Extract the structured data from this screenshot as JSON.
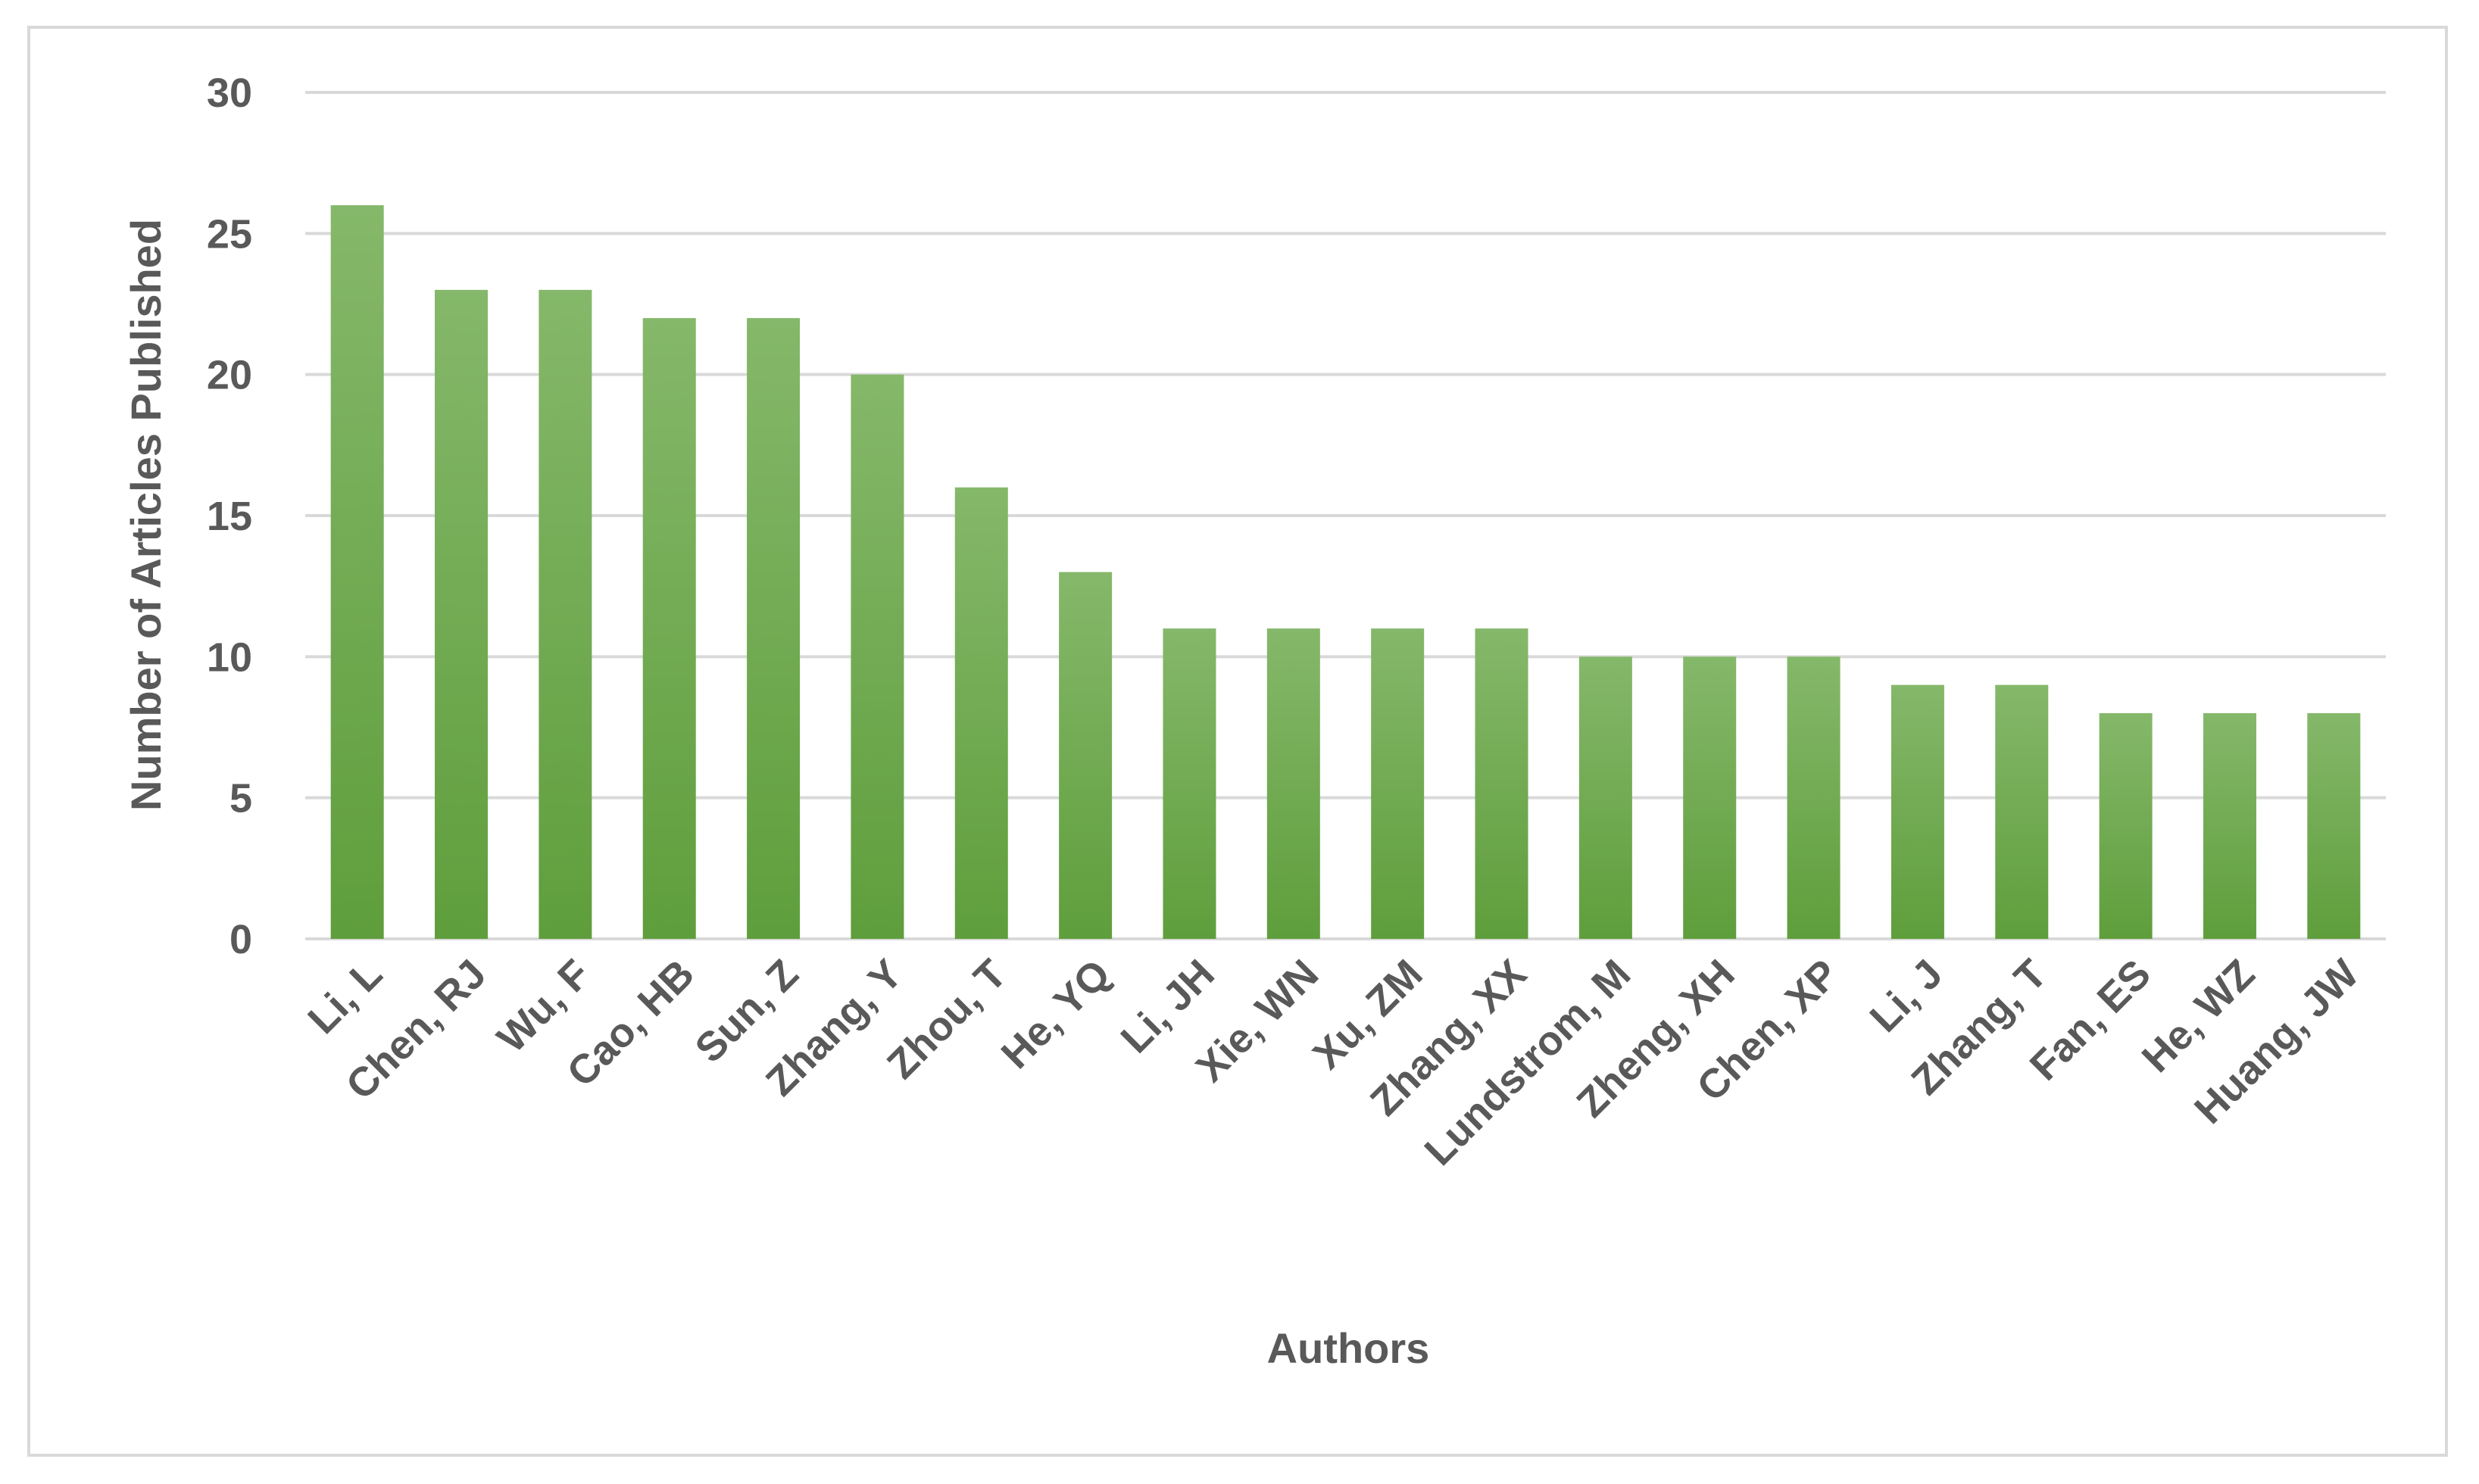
{
  "chart_data": {
    "type": "bar",
    "categories": [
      "Li, L",
      "Chen, RJ",
      "Wu, F",
      "Cao, HB",
      "Sun, Z",
      "Zhang, Y",
      "Zhou, T",
      "He, YQ",
      "Li, JH",
      "Xie, WN",
      "Xu, ZM",
      "Zhang, XX",
      "Lundstrom, M",
      "Zheng, XH",
      "Chen, XP",
      "Li, J",
      "Zhang, T",
      "Fan, ES",
      "He, WZ",
      "Huang, JW"
    ],
    "values": [
      26,
      23,
      23,
      22,
      22,
      20,
      16,
      13,
      11,
      11,
      11,
      11,
      10,
      10,
      10,
      9,
      9,
      8,
      8,
      8
    ],
    "xlabel": "Authors",
    "ylabel": "Number of Articles Published",
    "ylim": [
      0,
      30
    ],
    "yticks": [
      0,
      5,
      10,
      15,
      20,
      25,
      30
    ],
    "grid": true,
    "colors": {
      "bar_top": "#85b86a",
      "bar_bottom": "#5f9e3c"
    }
  }
}
